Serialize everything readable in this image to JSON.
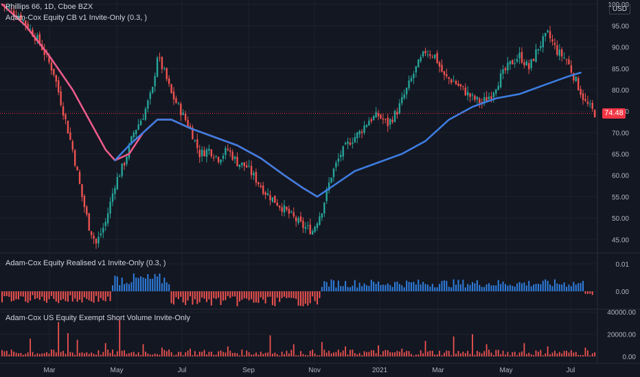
{
  "header": {
    "symbol_line": "Phillips 66, 1D, Cboe BZX",
    "indicator_cb": "Adam-Cox Equity CB v1 Invite-Only (0.3, )",
    "indicator_realised": "Adam-Cox Equity Realised v1 Invite-Only (0.3, )",
    "indicator_short": "Adam-Cox US Equity Exempt Short Volume Invite-Only",
    "currency": "USD"
  },
  "colors": {
    "background": "#131722",
    "up": "#26a69a",
    "down": "#ef5350",
    "ma_pink": "#ec5b8a",
    "ma_blue": "#3d7de0",
    "bar_blue": "#2f7fe0",
    "bar_red": "#ef5350",
    "price_tag": "#f23645",
    "grid": "#1e222d"
  },
  "chart_data": [
    {
      "type": "candlestick",
      "pane": "price",
      "title": "Phillips 66, 1D, Cboe BZX",
      "x_tick_labels": [
        "Mar",
        "May",
        "Jul",
        "Sep",
        "Nov",
        "2021",
        "Mar",
        "May",
        "Jul"
      ],
      "y_tick_labels": [
        "100.00",
        "95.00",
        "90.00",
        "85.00",
        "80.00",
        "75.00",
        "70.00",
        "65.00",
        "60.00",
        "55.00",
        "50.00",
        "45.00"
      ],
      "ylim": [
        42,
        101
      ],
      "last_price": "74.48",
      "close_path_anchors": [
        [
          0,
          100
        ],
        [
          8,
          97
        ],
        [
          16,
          91
        ],
        [
          22,
          84
        ],
        [
          26,
          75
        ],
        [
          30,
          66
        ],
        [
          34,
          55
        ],
        [
          37,
          48
        ],
        [
          40,
          44
        ],
        [
          44,
          49
        ],
        [
          48,
          58
        ],
        [
          52,
          63
        ],
        [
          56,
          70
        ],
        [
          60,
          74
        ],
        [
          64,
          80
        ],
        [
          66,
          88
        ],
        [
          69,
          84
        ],
        [
          72,
          79
        ],
        [
          76,
          75
        ],
        [
          80,
          71
        ],
        [
          84,
          65
        ],
        [
          88,
          66
        ],
        [
          92,
          64
        ],
        [
          96,
          66
        ],
        [
          100,
          63
        ],
        [
          104,
          62
        ],
        [
          108,
          59
        ],
        [
          112,
          56
        ],
        [
          116,
          54
        ],
        [
          120,
          52
        ],
        [
          124,
          50
        ],
        [
          128,
          48
        ],
        [
          132,
          47
        ],
        [
          136,
          52
        ],
        [
          140,
          60
        ],
        [
          144,
          65
        ],
        [
          148,
          68
        ],
        [
          152,
          70
        ],
        [
          156,
          73
        ],
        [
          160,
          74
        ],
        [
          164,
          72
        ],
        [
          168,
          75
        ],
        [
          172,
          80
        ],
        [
          176,
          85
        ],
        [
          180,
          89
        ],
        [
          184,
          88
        ],
        [
          188,
          83
        ],
        [
          192,
          82
        ],
        [
          196,
          80
        ],
        [
          200,
          78
        ],
        [
          204,
          77
        ],
        [
          208,
          79
        ],
        [
          212,
          83
        ],
        [
          216,
          86
        ],
        [
          220,
          88
        ],
        [
          224,
          85
        ],
        [
          228,
          90
        ],
        [
          232,
          93
        ],
        [
          236,
          89
        ],
        [
          240,
          87
        ],
        [
          244,
          82
        ],
        [
          248,
          77
        ],
        [
          252,
          74.5
        ]
      ],
      "series": [
        {
          "name": "",
          "style": "line",
          "color": "#ec5b8a",
          "points": [
            [
              0,
              100
            ],
            [
              10,
              95
            ],
            [
              20,
              88
            ],
            [
              30,
              80
            ],
            [
              38,
              72
            ],
            [
              44,
              66
            ],
            [
              48,
              63.5
            ],
            [
              54,
              65
            ],
            [
              60,
              70
            ],
            [
              66,
              73
            ],
            [
              72,
              73
            ],
            [
              80,
              71
            ],
            [
              90,
              69
            ],
            [
              100,
              67
            ],
            [
              110,
              64
            ],
            [
              120,
              60
            ],
            [
              128,
              57
            ],
            [
              134,
              55
            ]
          ]
        },
        {
          "name": "",
          "style": "line",
          "color": "#3d7de0",
          "points": [
            [
              48,
              63.5
            ],
            [
              54,
              67
            ],
            [
              60,
              70
            ],
            [
              66,
              73
            ],
            [
              72,
              73
            ],
            [
              80,
              71
            ],
            [
              90,
              69
            ],
            [
              100,
              67
            ],
            [
              110,
              64
            ],
            [
              120,
              60
            ],
            [
              128,
              57
            ],
            [
              134,
              55
            ],
            [
              142,
              58
            ],
            [
              150,
              61
            ],
            [
              160,
              63
            ],
            [
              170,
              65
            ],
            [
              180,
              68
            ],
            [
              190,
              73
            ],
            [
              200,
              76
            ],
            [
              210,
              78
            ],
            [
              220,
              79
            ],
            [
              230,
              81
            ],
            [
              240,
              83
            ],
            [
              246,
              84
            ]
          ]
        }
      ]
    },
    {
      "type": "bar",
      "pane": "realised",
      "title": "Adam-Cox Equity Realised v1 Invite-Only (0.3, )",
      "y_tick_labels": [
        "0.01",
        "0.00"
      ],
      "segments": [
        {
          "from": 0,
          "to": 47,
          "sign": "negative",
          "magnitude": 0.004
        },
        {
          "from": 47,
          "to": 72,
          "sign": "positive",
          "magnitude": 0.006
        },
        {
          "from": 72,
          "to": 136,
          "sign": "negative",
          "magnitude": 0.005
        },
        {
          "from": 136,
          "to": 248,
          "sign": "positive",
          "magnitude": 0.004
        },
        {
          "from": 248,
          "to": 252,
          "sign": "negative",
          "magnitude": 0.002
        }
      ]
    },
    {
      "type": "bar",
      "pane": "short_volume",
      "title": "Adam-Cox US Equity Exempt Short Volume Invite-Only",
      "y_tick_labels": [
        "40000.00",
        "20000.00",
        "0.00"
      ],
      "ylim": [
        0,
        42000
      ],
      "spikes": [
        [
          12,
          16000
        ],
        [
          24,
          31000
        ],
        [
          28,
          21000
        ],
        [
          32,
          15000
        ],
        [
          44,
          12000
        ],
        [
          50,
          33000
        ],
        [
          60,
          11000
        ],
        [
          68,
          8000
        ],
        [
          80,
          7000
        ],
        [
          96,
          9000
        ],
        [
          114,
          19000
        ],
        [
          124,
          11000
        ],
        [
          136,
          13000
        ],
        [
          146,
          9000
        ],
        [
          160,
          10000
        ],
        [
          170,
          7000
        ],
        [
          180,
          14000
        ],
        [
          192,
          18000
        ],
        [
          200,
          20000
        ],
        [
          206,
          11000
        ],
        [
          222,
          12000
        ],
        [
          232,
          9000
        ],
        [
          248,
          8000
        ]
      ]
    }
  ]
}
